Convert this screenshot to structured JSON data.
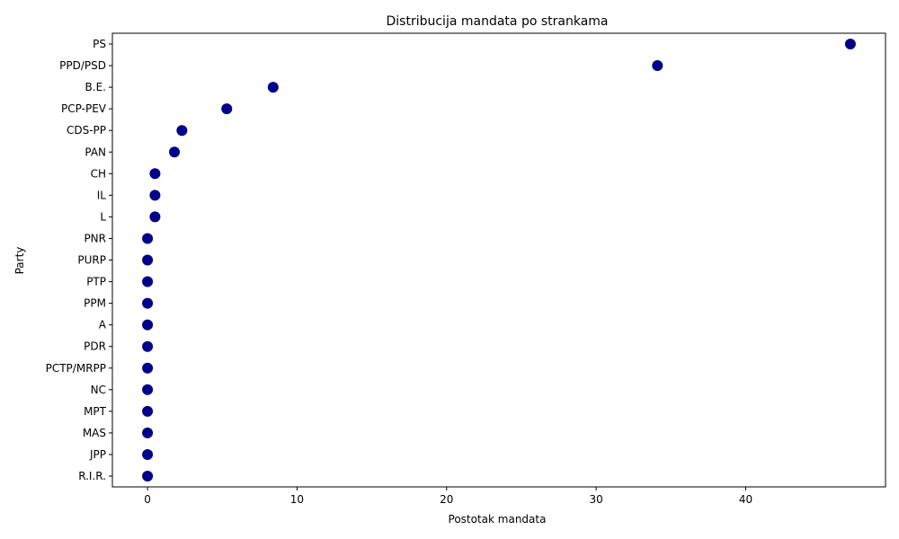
{
  "chart_data": {
    "type": "scatter",
    "title": "Distribucija mandata po strankama",
    "xlabel": "Postotak mandata",
    "ylabel": "Party",
    "xlim": [
      -2.35,
      49.35
    ],
    "x_ticks": [
      0,
      10,
      20,
      30,
      40
    ],
    "grid": false,
    "marker_color": "#00008b",
    "categories": [
      "PS",
      "PPD/PSD",
      "B.E.",
      "PCP-PEV",
      "CDS-PP",
      "PAN",
      "CH",
      "IL",
      "L",
      "PNR",
      "PURP",
      "PTP",
      "PPM",
      "A",
      "PDR",
      "PCTP/MRPP",
      "NC",
      "MPT",
      "MAS",
      "JPP",
      "R.I.R."
    ],
    "values": [
      47.0,
      34.1,
      8.4,
      5.3,
      2.3,
      1.8,
      0.5,
      0.5,
      0.5,
      0,
      0,
      0,
      0,
      0,
      0,
      0,
      0,
      0,
      0,
      0,
      0
    ]
  }
}
